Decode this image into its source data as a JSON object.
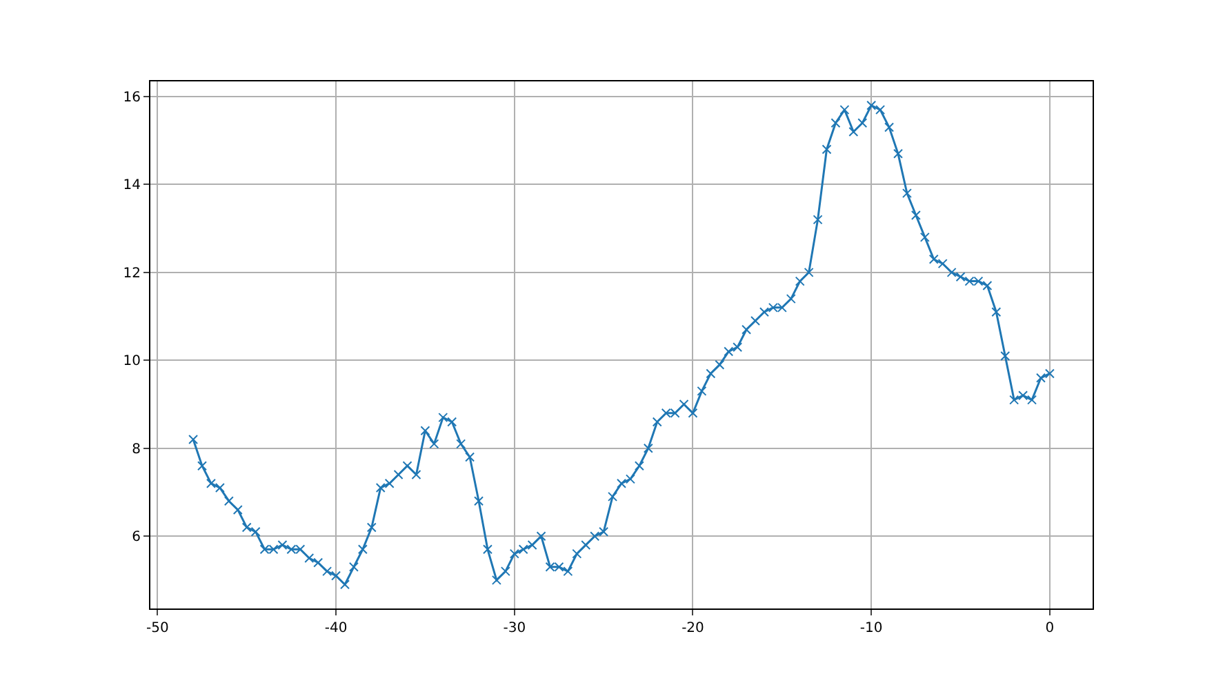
{
  "chart_data": {
    "type": "line",
    "x": [
      -48,
      -47.5,
      -47,
      -46.5,
      -46,
      -45.5,
      -45,
      -44.5,
      -44,
      -43.5,
      -43,
      -42.5,
      -42,
      -41.5,
      -41,
      -40.5,
      -40,
      -39.5,
      -39,
      -38.5,
      -38,
      -37.5,
      -37,
      -36.5,
      -36,
      -35.5,
      -35,
      -34.5,
      -34,
      -33.5,
      -33,
      -32.5,
      -32,
      -31.5,
      -31,
      -30.5,
      -30,
      -29.5,
      -29,
      -28.5,
      -28,
      -27.5,
      -27,
      -26.5,
      -26,
      -25.5,
      -25,
      -24.5,
      -24,
      -23.5,
      -23,
      -22.5,
      -22,
      -21.5,
      -21,
      -20.5,
      -20,
      -19.5,
      -19,
      -18.5,
      -18,
      -17.5,
      -17,
      -16.5,
      -16,
      -15.5,
      -15,
      -14.5,
      -14,
      -13.5,
      -13,
      -12.5,
      -12,
      -11.5,
      -11,
      -10.5,
      -10,
      -9.5,
      -9,
      -8.5,
      -8,
      -7.5,
      -7,
      -6.5,
      -6,
      -5.5,
      -5,
      -4.5,
      -4,
      -3.5,
      -3,
      -2.5,
      -2,
      -1.5,
      -1,
      -0.5,
      0
    ],
    "series": [
      {
        "color": "#1f77b4",
        "values": [
          8.2,
          7.6,
          7.2,
          7.1,
          6.8,
          6.6,
          6.2,
          6.1,
          5.7,
          5.7,
          5.8,
          5.7,
          5.7,
          5.5,
          5.4,
          5.2,
          5.1,
          4.9,
          5.3,
          5.7,
          6.2,
          7.1,
          7.2,
          7.4,
          7.6,
          7.4,
          8.4,
          8.1,
          8.7,
          8.6,
          8.1,
          7.8,
          6.8,
          5.7,
          5.0,
          5.2,
          5.6,
          5.7,
          5.8,
          6.0,
          5.3,
          5.3,
          5.2,
          5.6,
          5.8,
          6.0,
          6.1,
          6.9,
          7.2,
          7.3,
          7.6,
          8.0,
          8.6,
          8.8,
          8.8,
          9.0,
          8.8,
          9.3,
          9.7,
          9.9,
          10.2,
          10.3,
          10.7,
          10.9,
          11.1,
          11.2,
          11.2,
          11.4,
          11.8,
          12.0,
          13.2,
          14.8,
          15.4,
          15.7,
          15.2,
          15.4,
          15.8,
          15.7,
          15.3,
          14.7,
          13.8,
          13.3,
          12.8,
          12.3,
          12.2,
          12.0,
          11.9,
          11.8,
          11.8,
          11.7,
          11.1,
          10.1,
          9.1,
          9.2,
          9.1,
          9.6,
          9.7
        ]
      }
    ],
    "xlim": [
      -50.4,
      2.4
    ],
    "xticks": [
      -50,
      -40,
      -30,
      -20,
      -10,
      0
    ],
    "ylim": [
      4.355,
      16.345
    ],
    "yticks": [
      6,
      8,
      10,
      12,
      14,
      16
    ],
    "grid": true,
    "marker": "cross",
    "line_style": "solid"
  }
}
